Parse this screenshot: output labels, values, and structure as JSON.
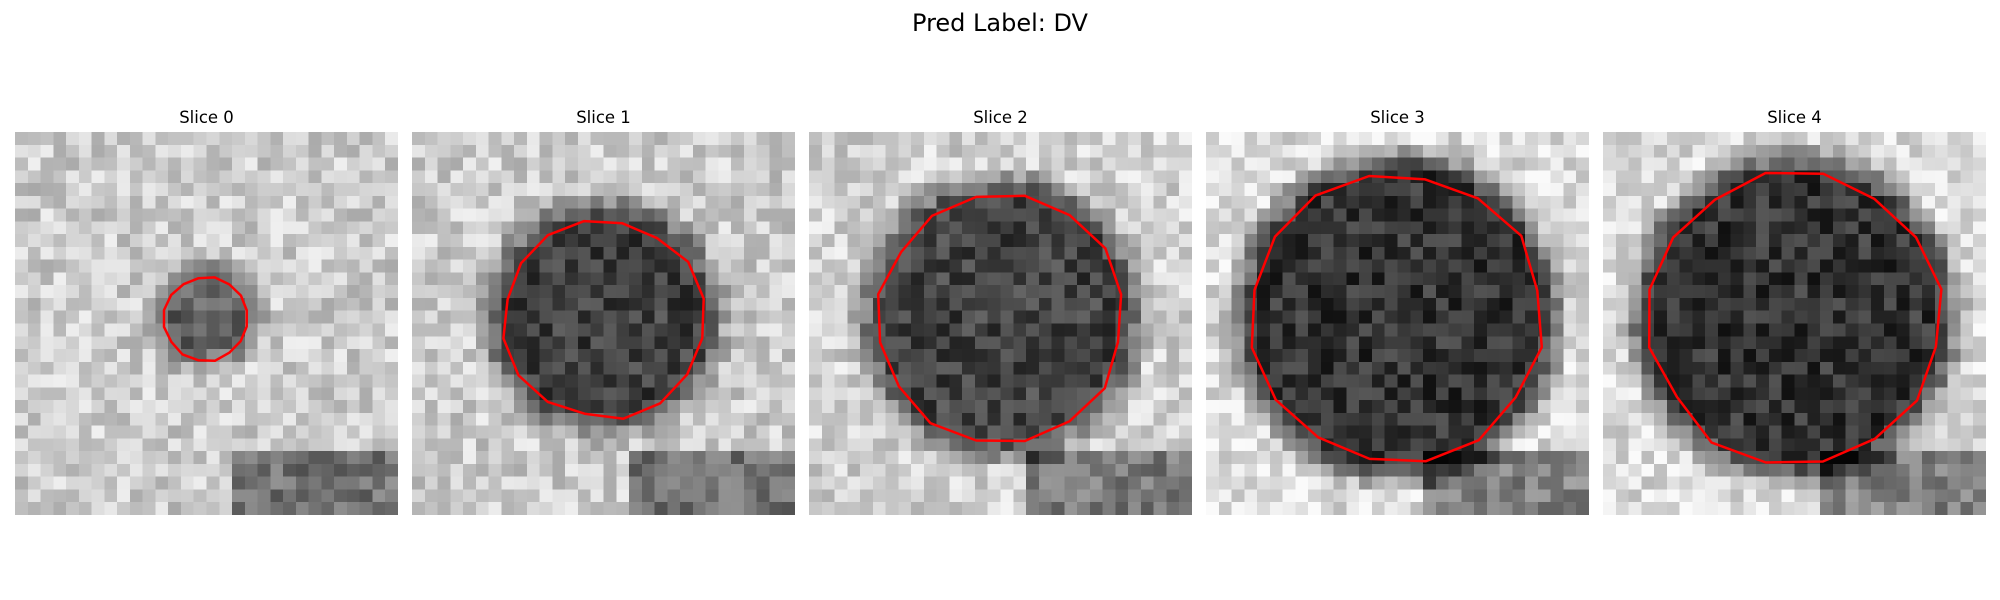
{
  "title": "Pred Label: DV",
  "panels": [
    {
      "title": "Slice 0",
      "core_radius": 0.09,
      "contour_radius": 0.11,
      "bright": 0.8,
      "dark": 0.38,
      "seed": 11
    },
    {
      "title": "Slice 1",
      "core_radius": 0.26,
      "contour_radius": 0.26,
      "bright": 0.8,
      "dark": 0.25,
      "seed": 23
    },
    {
      "title": "Slice 2",
      "core_radius": 0.32,
      "contour_radius": 0.32,
      "bright": 0.82,
      "dark": 0.26,
      "seed": 37
    },
    {
      "title": "Slice 3",
      "core_radius": 0.38,
      "contour_radius": 0.38,
      "bright": 0.86,
      "dark": 0.2,
      "seed": 41
    },
    {
      "title": "Slice 4",
      "core_radius": 0.38,
      "contour_radius": 0.38,
      "bright": 0.86,
      "dark": 0.2,
      "seed": 53
    }
  ],
  "colors": {
    "contour": "#ff0000"
  }
}
